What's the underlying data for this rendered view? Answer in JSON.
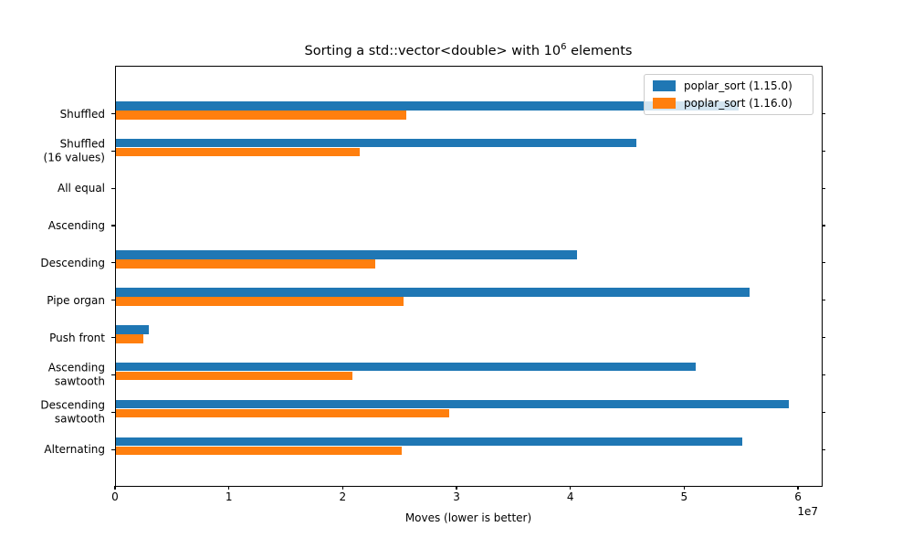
{
  "figure": {
    "title": {
      "prefix": "Sorting a std::vector<double> with 10",
      "superscript": "6",
      "suffix": " elements"
    },
    "xlabel": "Moves (lower is better)",
    "offset_label": "1e7"
  },
  "legend": {
    "items": [
      {
        "label": "poplar_sort (1.15.0)",
        "color": "#1f77b4",
        "swatch_icon": "blue-color-swatch"
      },
      {
        "label": "poplar_sort (1.16.0)",
        "color": "#ff7f0e",
        "swatch_icon": "orange-color-swatch"
      }
    ]
  },
  "chart_data": {
    "type": "bar",
    "orientation": "horizontal",
    "title": "Sorting a std::vector<double> with 10^6 elements",
    "xlabel": "Moves (lower is better)",
    "ylabel": "",
    "x_scale_label": "1e7",
    "xlim_e7": [
      0,
      6.2
    ],
    "x_ticks_e7": [
      0,
      1,
      2,
      3,
      4,
      5,
      6
    ],
    "grid": false,
    "legend_position": "upper right",
    "categories": [
      "Shuffled",
      "Shuffled\n(16 values)",
      "All equal",
      "Ascending",
      "Descending",
      "Pipe organ",
      "Push front",
      "Ascending\nsawtooth",
      "Descending\nsawtooth",
      "Alternating"
    ],
    "series": [
      {
        "name": "poplar_sort (1.15.0)",
        "color": "#1f77b4",
        "values_e7": [
          5.47,
          4.57,
          0,
          0,
          4.05,
          5.57,
          0.29,
          5.09,
          5.91,
          5.5
        ]
      },
      {
        "name": "poplar_sort (1.16.0)",
        "color": "#ff7f0e",
        "values_e7": [
          2.55,
          2.14,
          0,
          0,
          2.28,
          2.53,
          0.24,
          2.08,
          2.93,
          2.51
        ]
      }
    ]
  }
}
